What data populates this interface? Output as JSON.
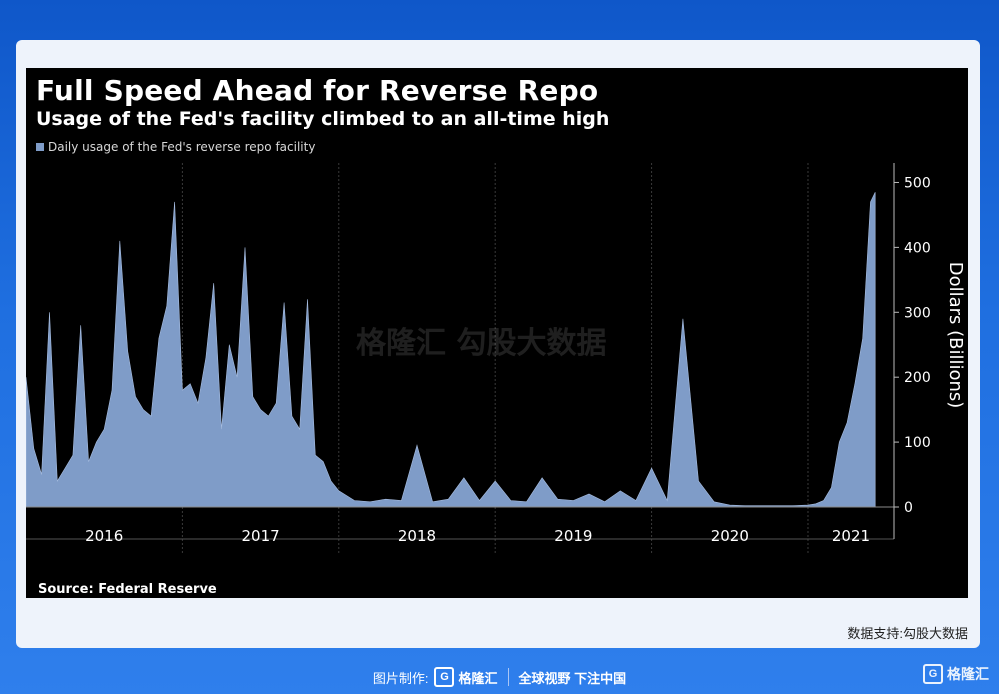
{
  "footer": {
    "made_by": "图片制作:",
    "logo_text": "格隆汇",
    "slogan": "全球视野 下注中国"
  },
  "corner_logo": "格隆汇",
  "credit": "数据支持:勾股大数据",
  "colors": {
    "series": "#7f9cc8",
    "panel": "#000000",
    "background": "#1f6fe0"
  },
  "chart_data": {
    "type": "area",
    "title": "Full Speed Ahead for Reverse Repo",
    "subtitle": "Usage of the Fed's facility climbed to an all-time high",
    "source": "Source: Federal Reserve",
    "ylabel": "Dollars (Billions)",
    "ylim": [
      0,
      530
    ],
    "xlim": [
      2016.0,
      2021.55
    ],
    "yticks": [
      0,
      100,
      200,
      300,
      400,
      500
    ],
    "xtick_labels": [
      "2016",
      "2017",
      "2018",
      "2019",
      "2020",
      "2021"
    ],
    "legend": "top-left",
    "series": [
      {
        "name": "Daily usage of the Fed's reverse repo facility",
        "x": [
          2016.0,
          2016.05,
          2016.1,
          2016.15,
          2016.2,
          2016.25,
          2016.3,
          2016.35,
          2016.4,
          2016.45,
          2016.5,
          2016.55,
          2016.6,
          2016.65,
          2016.7,
          2016.75,
          2016.8,
          2016.85,
          2016.9,
          2016.95,
          2017.0,
          2017.05,
          2017.1,
          2017.15,
          2017.2,
          2017.25,
          2017.3,
          2017.35,
          2017.4,
          2017.45,
          2017.5,
          2017.55,
          2017.6,
          2017.65,
          2017.7,
          2017.75,
          2017.8,
          2017.85,
          2017.9,
          2017.95,
          2018.0,
          2018.1,
          2018.2,
          2018.3,
          2018.4,
          2018.5,
          2018.6,
          2018.7,
          2018.8,
          2018.9,
          2019.0,
          2019.1,
          2019.2,
          2019.3,
          2019.4,
          2019.5,
          2019.6,
          2019.7,
          2019.8,
          2019.9,
          2020.0,
          2020.1,
          2020.2,
          2020.3,
          2020.4,
          2020.5,
          2020.6,
          2020.7,
          2020.8,
          2020.9,
          2021.0,
          2021.05,
          2021.1,
          2021.15,
          2021.2,
          2021.25,
          2021.3,
          2021.35,
          2021.4,
          2021.43
        ],
        "y": [
          200,
          90,
          50,
          300,
          40,
          60,
          80,
          280,
          70,
          100,
          120,
          180,
          410,
          240,
          170,
          150,
          140,
          260,
          310,
          470,
          180,
          190,
          160,
          230,
          345,
          120,
          250,
          200,
          400,
          170,
          150,
          140,
          160,
          315,
          140,
          120,
          320,
          80,
          70,
          40,
          25,
          10,
          8,
          12,
          10,
          95,
          8,
          12,
          45,
          10,
          40,
          10,
          8,
          45,
          12,
          10,
          20,
          8,
          25,
          10,
          60,
          10,
          290,
          40,
          8,
          3,
          2,
          2,
          2,
          2,
          3,
          5,
          10,
          30,
          100,
          130,
          190,
          260,
          470,
          485
        ]
      }
    ],
    "watermark": "格隆汇 勾股大数据"
  }
}
